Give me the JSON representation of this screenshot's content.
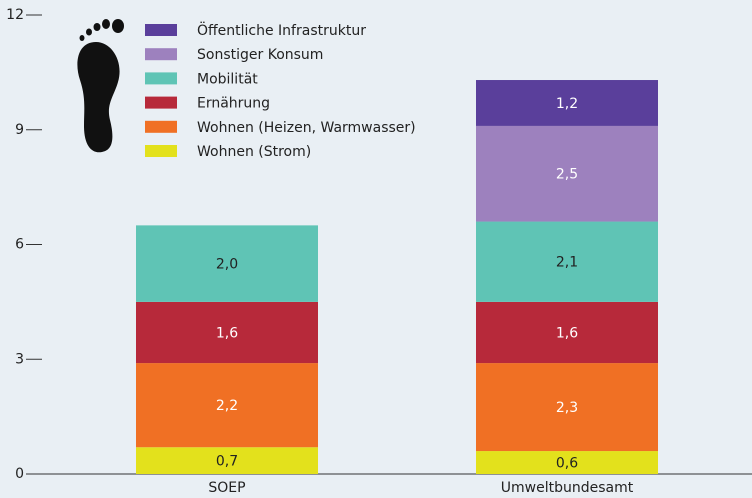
{
  "chart_data": {
    "type": "stacked_bar",
    "categories": [
      "SOEP",
      "Umweltbundesamt"
    ],
    "series": [
      {
        "name": "Wohnen (Strom)",
        "color": "#e3e11c",
        "values": [
          0.7,
          0.6
        ],
        "value_labels": [
          "0,7",
          "0,6"
        ]
      },
      {
        "name": "Wohnen (Heizen, Warmwasser)",
        "color": "#f07024",
        "values": [
          2.2,
          2.3
        ],
        "value_labels": [
          "2,2",
          "2,3"
        ]
      },
      {
        "name": "Ernährung",
        "color": "#b7293a",
        "values": [
          1.6,
          1.6
        ],
        "value_labels": [
          "1,6",
          "1,6"
        ]
      },
      {
        "name": "Mobilität",
        "color": "#5fc4b5",
        "values": [
          2.0,
          2.1
        ],
        "value_labels": [
          "2,0",
          "2,1"
        ]
      },
      {
        "name": "Sonstiger Konsum",
        "color": "#9d81be",
        "values": [
          null,
          2.5
        ],
        "value_labels": [
          null,
          "2,5"
        ]
      },
      {
        "name": "Öffentliche Infrastruktur",
        "color": "#5a3f9b",
        "values": [
          null,
          1.2
        ],
        "value_labels": [
          null,
          "1,2"
        ]
      }
    ],
    "ylim": [
      0,
      12
    ],
    "yticks": [
      0,
      3,
      6,
      9,
      12
    ]
  }
}
